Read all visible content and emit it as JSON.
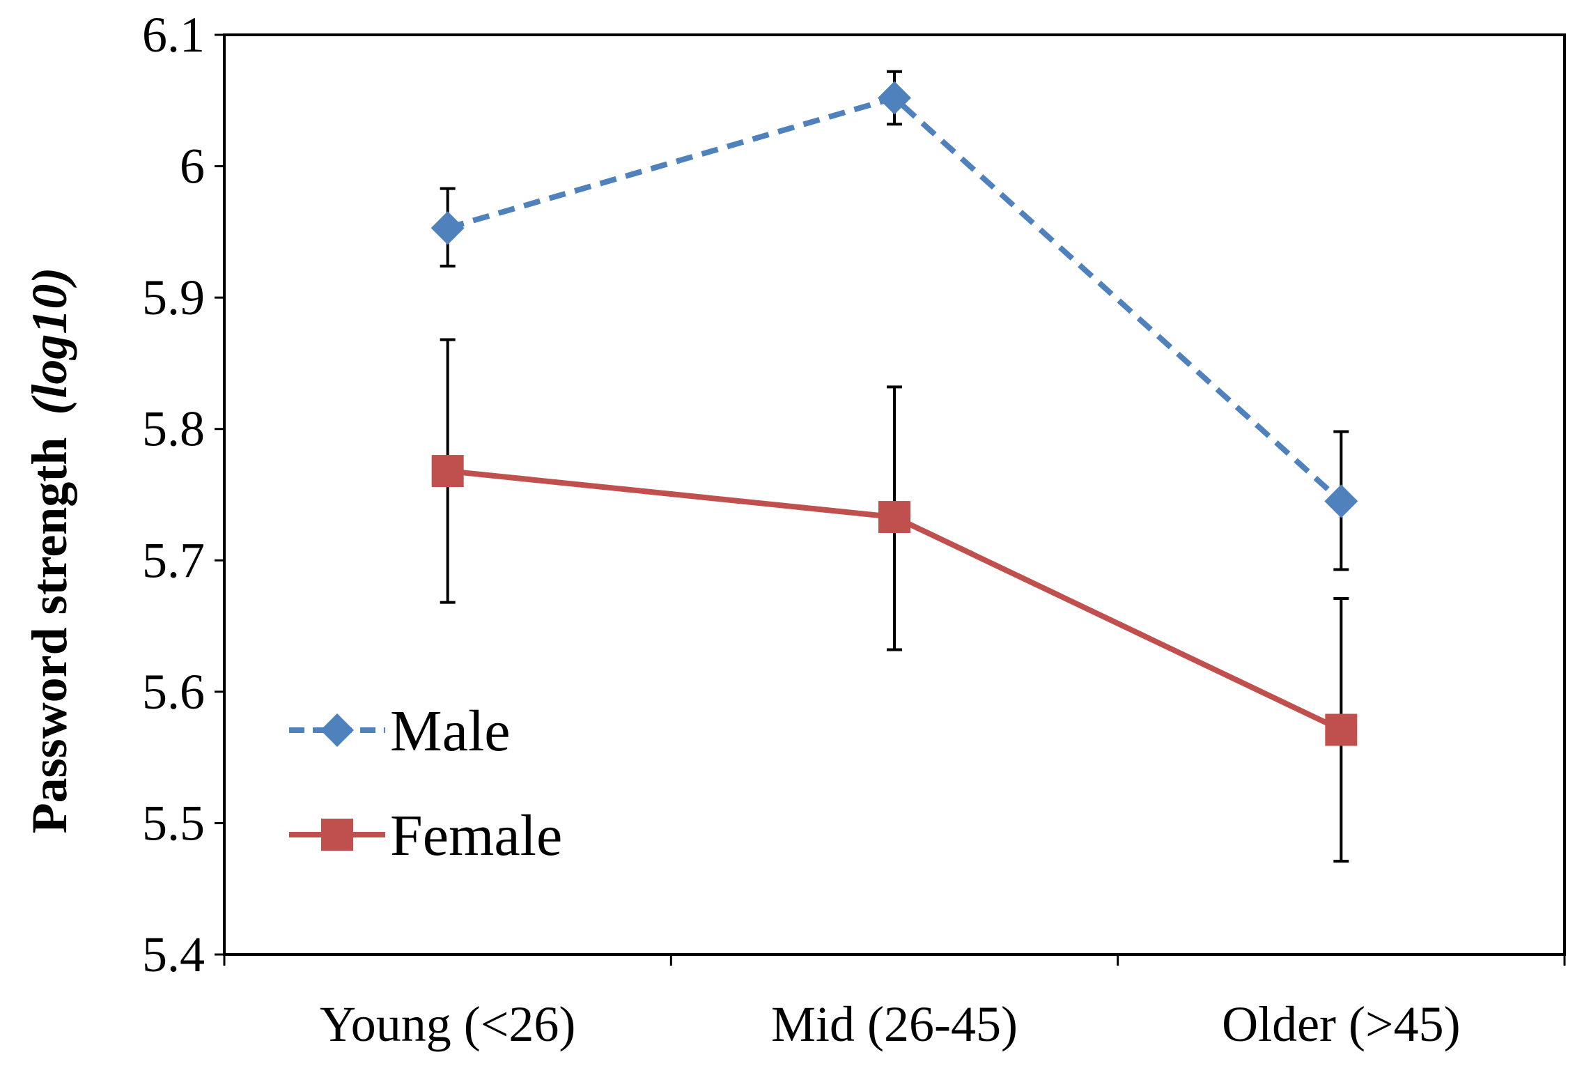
{
  "chart_data": {
    "type": "line",
    "title": "",
    "xlabel": "",
    "ylabel": "Password strength",
    "ylabel_suffix": "(log10)",
    "ylim": [
      5.4,
      6.1
    ],
    "yticks": [
      "5.4",
      "5.5",
      "5.6",
      "5.7",
      "5.8",
      "5.9",
      "6",
      "6.1"
    ],
    "categories": [
      "Young (<26)",
      "Mid (26-45)",
      "Older (>45)"
    ],
    "grid": false,
    "legend_position": "bottom-left",
    "series": [
      {
        "name": "Male",
        "color": "#4F81BD",
        "line_style": "dashed",
        "marker": "diamond",
        "values": [
          5.953,
          6.052,
          5.745
        ],
        "error_low": [
          5.924,
          6.032,
          5.693
        ],
        "error_high": [
          5.983,
          6.072,
          5.798
        ]
      },
      {
        "name": "Female",
        "color": "#C0504D",
        "line_style": "solid",
        "marker": "square",
        "values": [
          5.768,
          5.733,
          5.571
        ],
        "error_low": [
          5.668,
          5.632,
          5.471
        ],
        "error_high": [
          5.868,
          5.832,
          5.671
        ]
      }
    ]
  }
}
